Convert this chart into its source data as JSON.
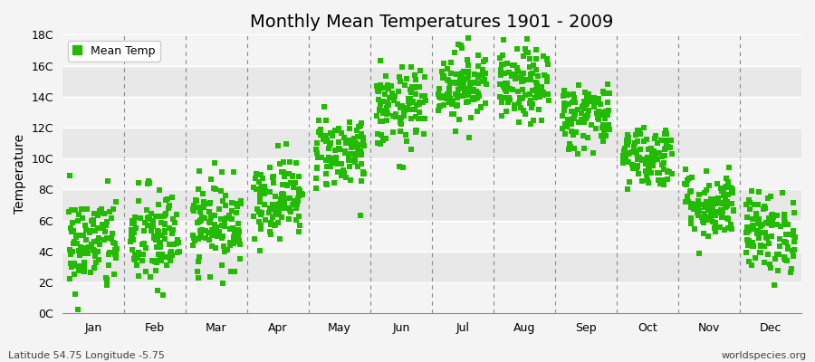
{
  "title": "Monthly Mean Temperatures 1901 - 2009",
  "ylabel": "Temperature",
  "footer_left": "Latitude 54.75 Longitude -5.75",
  "footer_right": "worldspecies.org",
  "legend_label": "Mean Temp",
  "dot_color": "#22bb00",
  "figure_bg": "#f4f4f4",
  "plot_bg": "#f4f4f4",
  "band_light": "#f4f4f4",
  "band_dark": "#e8e8e8",
  "grid_color": "#ffffff",
  "dashed_line_color": "#888888",
  "ylim": [
    0,
    18
  ],
  "ytick_labels": [
    "0C",
    "2C",
    "4C",
    "6C",
    "8C",
    "10C",
    "12C",
    "14C",
    "16C",
    "18C"
  ],
  "ytick_values": [
    0,
    2,
    4,
    6,
    8,
    10,
    12,
    14,
    16,
    18
  ],
  "months": [
    "Jan",
    "Feb",
    "Mar",
    "Apr",
    "May",
    "Jun",
    "Jul",
    "Aug",
    "Sep",
    "Oct",
    "Nov",
    "Dec"
  ],
  "monthly_means": [
    4.5,
    4.8,
    5.8,
    7.5,
    10.5,
    13.2,
    14.8,
    14.6,
    12.8,
    10.2,
    7.0,
    5.2
  ],
  "monthly_stds": [
    1.6,
    1.7,
    1.4,
    1.3,
    1.2,
    1.3,
    1.2,
    1.2,
    1.1,
    1.0,
    1.1,
    1.3
  ],
  "n_years": 109,
  "seed": 42,
  "marker_size": 18,
  "dot_alpha": 1.0,
  "title_fontsize": 14,
  "axis_fontsize": 10,
  "tick_fontsize": 9,
  "footer_fontsize": 8,
  "legend_fontsize": 9
}
